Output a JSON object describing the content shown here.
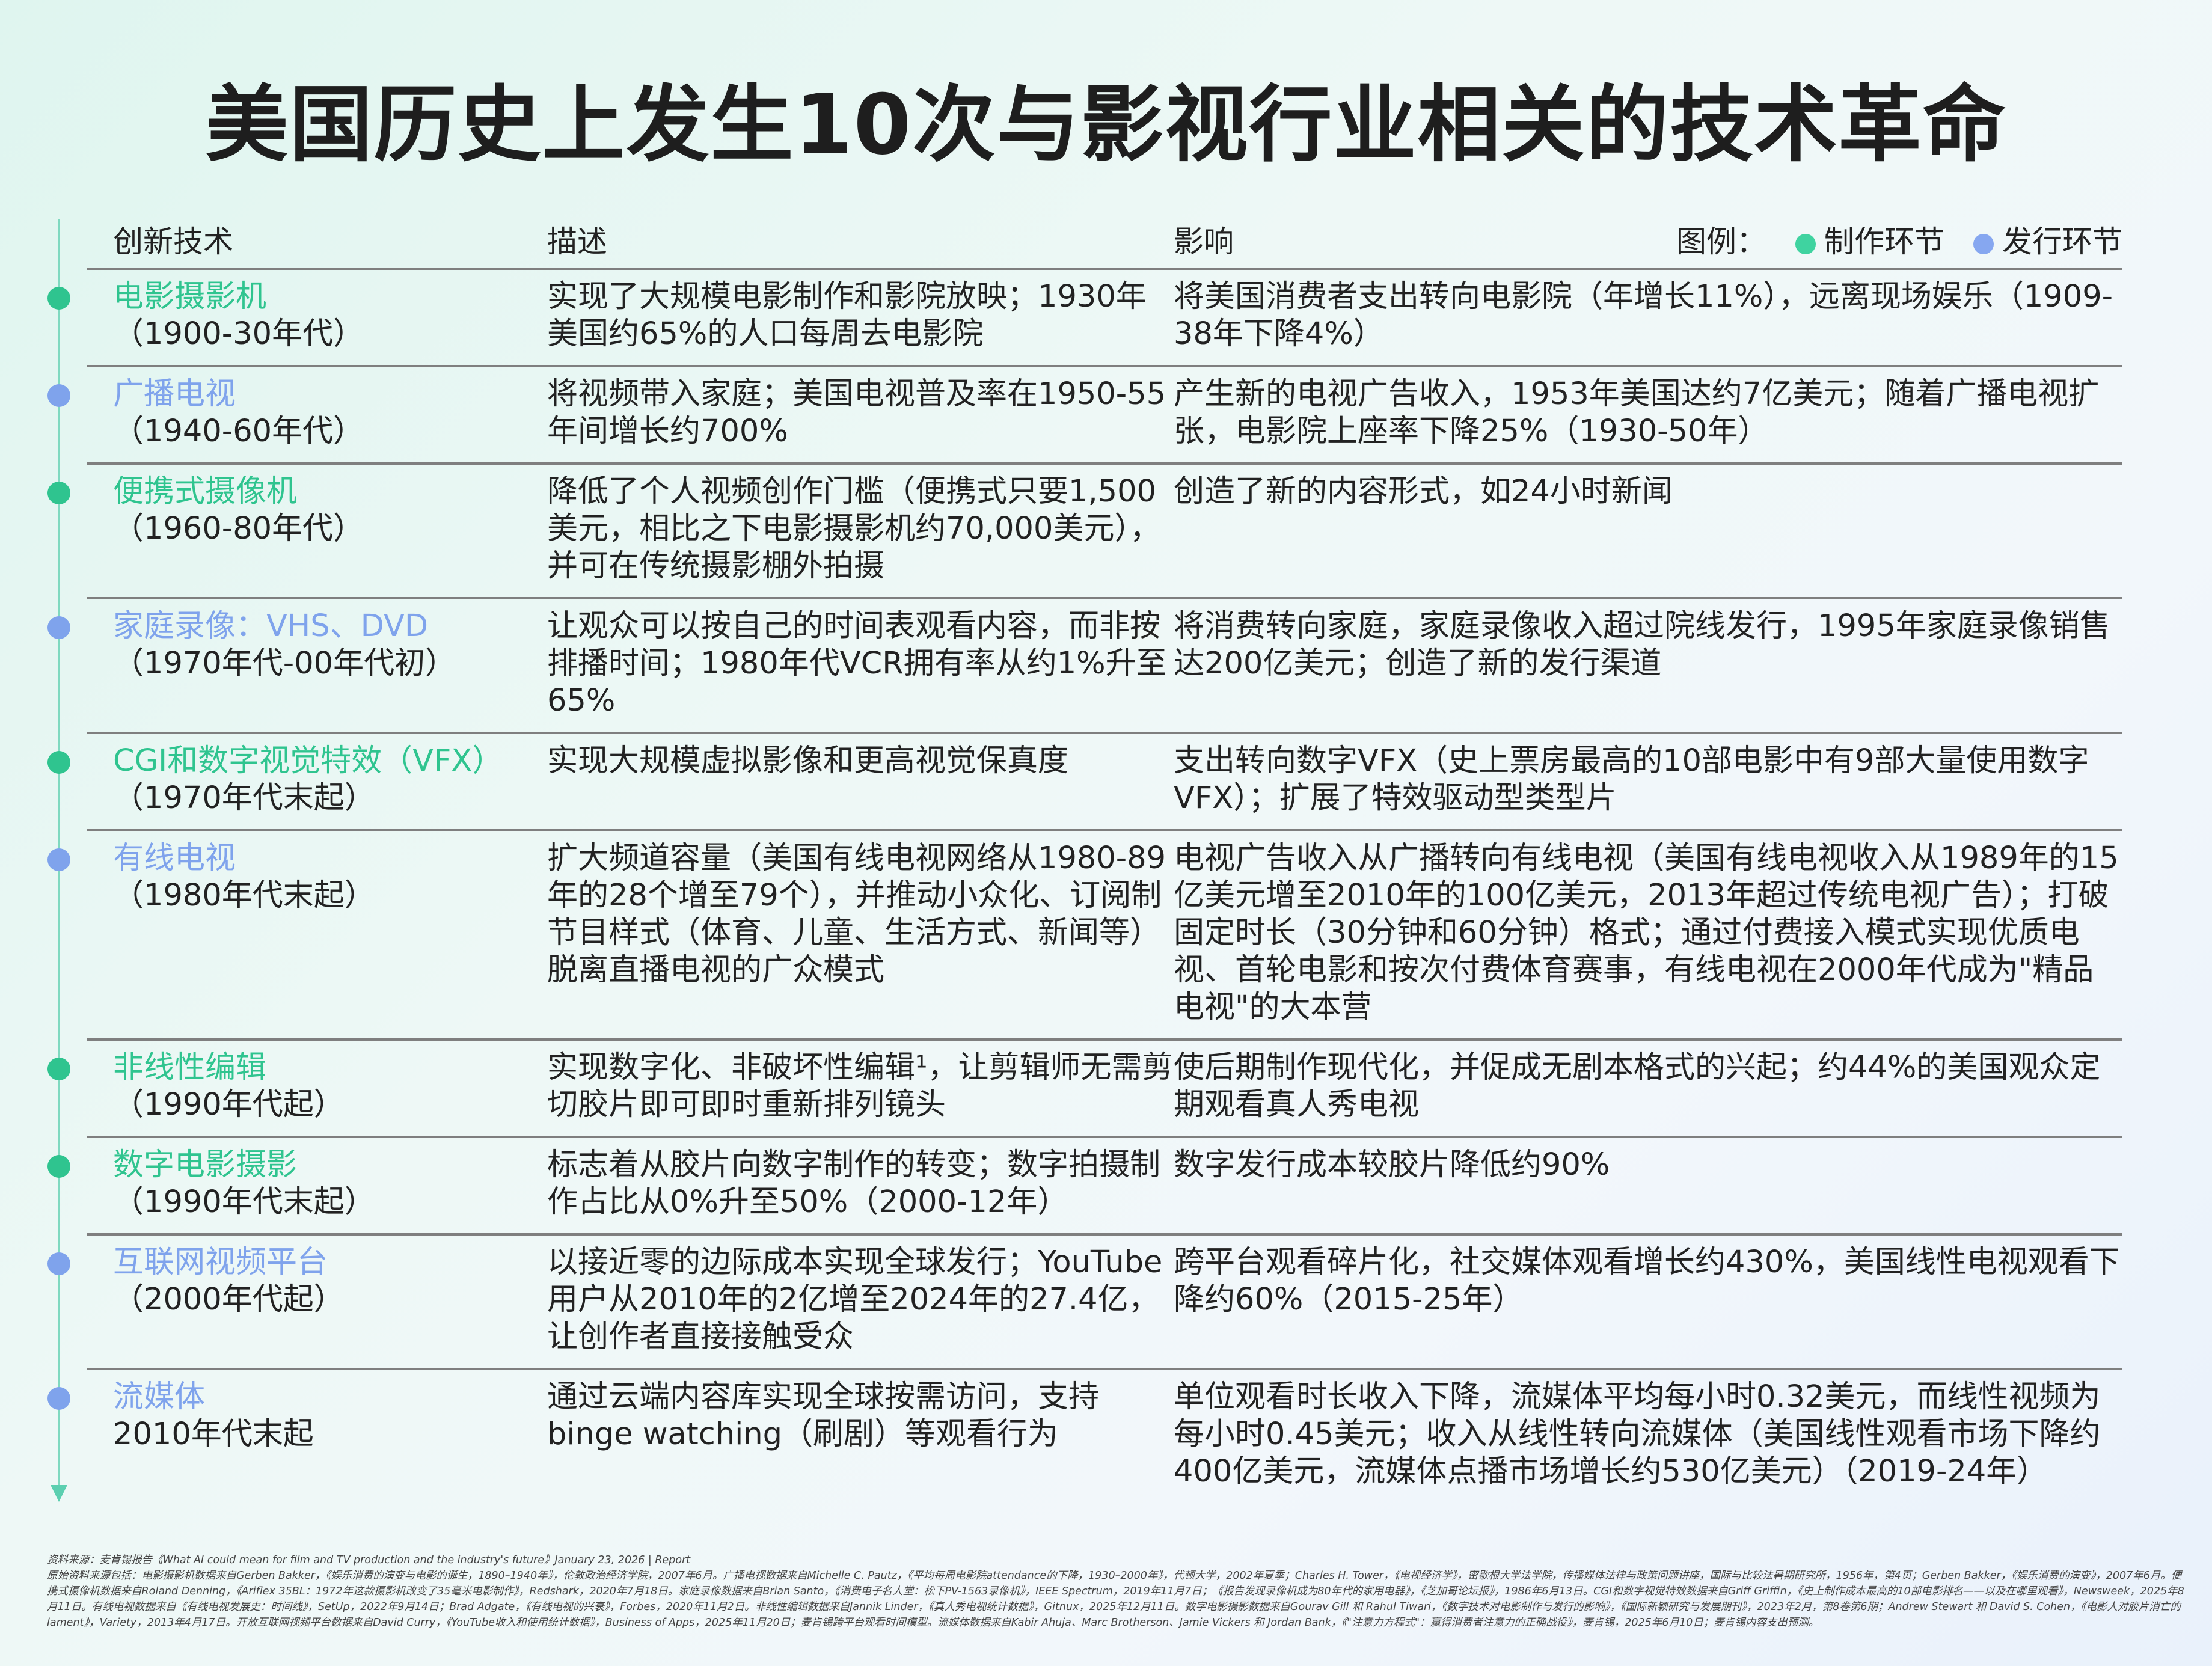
{
  "title": "美国历史上发生10次与影视行业相关的技术革命",
  "header": {
    "columns": [
      "创新技术",
      "描述",
      "影响"
    ],
    "legend_label": "图例：",
    "legend": [
      {
        "name": "制作环节",
        "color": "#3fd3a0"
      },
      {
        "name": "发行环节",
        "color": "#86a7f0"
      }
    ]
  },
  "rows": [
    {
      "name": "电影摄影机",
      "period": "（1900-30年代）",
      "color": "#2fc48f",
      "description": "实现了大规模电影制作和影院放映；1930年美国约65%的人口每周去电影院",
      "impact": "将美国消费者支出转向电影院（年增长11%），远离现场娱乐（1909-38年下降4%）"
    },
    {
      "name": "广播电视",
      "period": "（1940-60年代）",
      "color": "#7fa3ec",
      "description": "将视频带入家庭；美国电视普及率在1950-55年间增长约700%",
      "impact": "产生新的电视广告收入，1953年美国达约7亿美元；随着广播电视扩张，电影院上座率下降25%（1930-50年）"
    },
    {
      "name": "便携式摄像机",
      "period": "（1960-80年代）",
      "color": "#2fc48f",
      "description": "降低了个人视频创作门槛（便携式只要1,500美元，相比之下电影摄影机约70,000美元），并可在传统摄影棚外拍摄",
      "impact": "创造了新的内容形式，如24小时新闻"
    },
    {
      "name": "家庭录像：VHS、DVD",
      "period": "（1970年代-00年代初）",
      "color": "#7fa3ec",
      "description": "让观众可以按自己的时间表观看内容，而非按排播时间；1980年代VCR拥有率从约1%升至65%",
      "impact": "将消费转向家庭，家庭录像收入超过院线发行，1995年家庭录像销售达200亿美元；创造了新的发行渠道"
    },
    {
      "name": "CGI和数字视觉特效（VFX）",
      "period": "（1970年代末起）",
      "color": "#2fc48f",
      "description": "实现大规模虚拟影像和更高视觉保真度",
      "impact": "支出转向数字VFX（史上票房最高的10部电影中有9部大量使用数字VFX）；扩展了特效驱动型类型片"
    },
    {
      "name": "有线电视",
      "period": "（1980年代末起）",
      "color": "#7fa3ec",
      "description": "扩大频道容量（美国有线电视网络从1980-89年的28个增至79个），并推动小众化、订阅制节目样式（体育、儿童、生活方式、新闻等）脱离直播电视的广众模式",
      "impact": "电视广告收入从广播转向有线电视（美国有线电视收入从1989年的15亿美元增至2010年的100亿美元，2013年超过传统电视广告）；打破固定时长（30分钟和60分钟）格式；通过付费接入模式实现优质电视、首轮电影和按次付费体育赛事，有线电视在2000年代成为\"精品电视\"的大本营"
    },
    {
      "name": "非线性编辑",
      "period": "（1990年代起）",
      "color": "#2fc48f",
      "description": "实现数字化、非破坏性编辑¹，让剪辑师无需剪切胶片即可即时重新排列镜头",
      "impact": "使后期制作现代化，并促成无剧本格式的兴起；约44%的美国观众定期观看真人秀电视"
    },
    {
      "name": "数字电影摄影",
      "period": "（1990年代末起）",
      "color": "#2fc48f",
      "description": "标志着从胶片向数字制作的转变；数字拍摄制作占比从0%升至50%（2000-12年）",
      "impact": "数字发行成本较胶片降低约90%"
    },
    {
      "name": "互联网视频平台",
      "period": "（2000年代起）",
      "color": "#7fa3ec",
      "description": "以接近零的边际成本实现全球发行；YouTube用户从2010年的2亿增至2024年的27.4亿，让创作者直接接触受众",
      "impact": "跨平台观看碎片化，社交媒体观看增长约430%，美国线性电视观看下降约60%（2015-25年）"
    },
    {
      "name": "流媒体",
      "period": "2010年代末起",
      "color": "#7fa3ec",
      "description": "通过云端内容库实现全球按需访问，支持binge watching（刷剧）等观看行为",
      "impact": "单位观看时长收入下降，流媒体平均每小时0.32美元，而线性视频为每小时0.45美元；收入从线性转向流媒体（美国线性观看市场下降约400亿美元，流媒体点播市场增长约530亿美元）（2019-24年）"
    }
  ],
  "footnotes": [
    "资料来源：麦肯锡报告《What AI could mean for film and TV production and the industry's future》January 23, 2026 | Report",
    "原始资料来源包括：电影摄影机数据来自Gerben Bakker，《娱乐消费的演变与电影的诞生，1890–1940年》，伦敦政治经济学院，2007年6月。广播电视数据来自Michelle C. Pautz，《平均每周电影院attendance的下降，1930–2000年》，代顿大学，2002年夏季；Charles H. Tower，《电视经济学》，密歇根大学法学院，传播媒体法律与政策问题讲座，国际与比较法暑期研究所，1956年，第4页；Gerben Bakker，《娱乐消费的演变》，2007年6月。便携式摄像机数据来自Roland Denning，《Ariflex 35BL：1972年这款摄影机改变了35毫米电影制作》，Redshark，2020年7月18日。家庭录像数据来自Brian Santo，《消费电子名人堂：松下PV-1563录像机》，IEEE Spectrum，2019年11月7日；《报告发现录像机成为80年代的家用电器》，《芝加哥论坛报》，1986年6月13日。CGI和数字视觉特效数据来自Griff Griffin，《史上制作成本最高的10部电影排名——以及在哪里观看》，Newsweek，2025年8月11日。有线电视数据来自《有线电视发展史：时间线》，SetUp，2022年9月14日；Brad Adgate，《有线电视的兴衰》，Forbes，2020年11月2日。非线性编辑数据来自Jannik Linder，《真人秀电视统计数据》，Gitnux，2025年12月11日。数字电影摄影数据来自Gourav Gill 和 Rahul Tiwari，《数字技术对电影制作与发行的影响》，《国际新颖研究与发展期刊》，2023年2月，第8卷第6期；Andrew Stewart 和 David S. Cohen，《电影人对胶片消亡的 lament》，Variety，2013年4月17日。开放互联网视频平台数据来自David Curry，《YouTube收入和使用统计数据》，Business of Apps，2025年11月20日；麦肯锡跨平台观看时间模型。流媒体数据来自Kabir Ahuja、Marc Brotherson、Jamie Vickers 和 Jordan Bank，《\"注意力方程式\"：赢得消费者注意力的正确战役》，麦肯锡，2025年6月10日；麦肯锡内容支出预测。"
  ]
}
